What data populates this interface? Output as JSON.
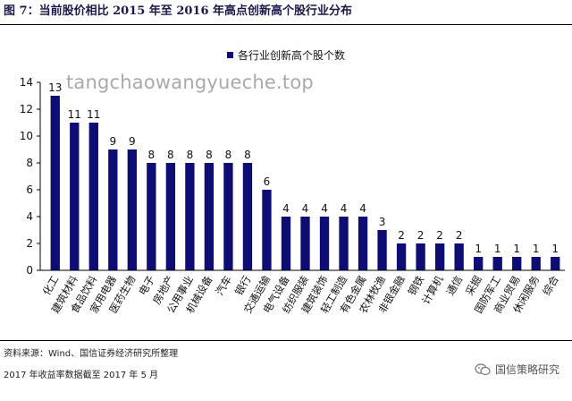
{
  "figure_title": "图 7：当前股价相比 2015 年至 2016 年高点创新高个股行业分布",
  "watermark": "tangchaowangyueche.top",
  "source": "资料来源：Wind、国信证券经济研究所整理",
  "note": "2017 年收益率数据截至 2017 年 5 月",
  "brand": "国信策略研究",
  "colors": {
    "bar": "#0d0d73",
    "axis": "#000000"
  },
  "chart_data": {
    "type": "bar",
    "title": "",
    "xlabel": "",
    "ylabel": "",
    "legend": {
      "position": "top-center"
    },
    "ylim": [
      0,
      14
    ],
    "yticks": [
      0,
      2,
      4,
      6,
      8,
      10,
      12,
      14
    ],
    "grid": false,
    "categories": [
      "化工",
      "建筑材料",
      "食品饮料",
      "家用电器",
      "医药生物",
      "电子",
      "房地产",
      "公用事业",
      "机械设备",
      "汽车",
      "银行",
      "交通运输",
      "电气设备",
      "纺织服装",
      "建筑装饰",
      "轻工制造",
      "有色金属",
      "农林牧渔",
      "非银金融",
      "钢铁",
      "计算机",
      "通信",
      "采掘",
      "国防军工",
      "商业贸易",
      "休闲服务",
      "综合"
    ],
    "series": [
      {
        "name": "各行业创新高个股个数",
        "values": [
          13,
          11,
          11,
          9,
          9,
          8,
          8,
          8,
          8,
          8,
          8,
          6,
          4,
          4,
          4,
          4,
          4,
          3,
          2,
          2,
          2,
          2,
          1,
          1,
          1,
          1,
          1
        ]
      }
    ]
  }
}
